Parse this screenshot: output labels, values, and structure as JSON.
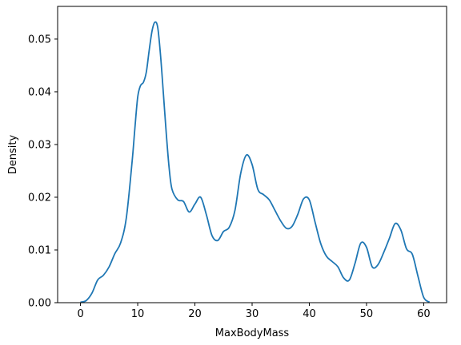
{
  "chart_data": {
    "type": "line",
    "title": "",
    "xlabel": "MaxBodyMass",
    "ylabel": "Density",
    "xlim": [
      -4,
      64
    ],
    "ylim": [
      0,
      0.0562
    ],
    "grid": false,
    "legend": "none",
    "xticks": [
      0,
      10,
      20,
      30,
      40,
      50,
      60
    ],
    "yticks": [
      0.0,
      0.01,
      0.02,
      0.03,
      0.04,
      0.05
    ],
    "ytick_format": 2,
    "series": [
      {
        "color": "#1f77b4",
        "x": [
          0,
          1,
          2,
          3,
          4,
          5,
          6,
          7,
          8,
          9,
          9.5,
          10,
          10.5,
          11,
          11.5,
          12,
          12.5,
          13,
          13.5,
          14,
          14.5,
          15,
          15.5,
          16,
          17,
          18,
          19,
          20,
          21,
          22,
          23,
          24,
          25,
          26,
          27,
          28,
          29,
          30,
          31,
          32,
          33,
          34,
          35,
          36,
          37,
          38,
          39,
          40,
          41,
          42,
          43,
          44,
          45,
          46,
          47,
          48,
          49,
          50,
          51,
          52,
          53,
          54,
          55,
          56,
          57,
          58,
          59,
          60,
          61
        ],
        "y": [
          0.0001,
          0.0004,
          0.0018,
          0.0043,
          0.0052,
          0.0068,
          0.0093,
          0.0113,
          0.016,
          0.0265,
          0.033,
          0.039,
          0.0412,
          0.0418,
          0.0437,
          0.0478,
          0.0515,
          0.0532,
          0.0522,
          0.0468,
          0.0395,
          0.032,
          0.0255,
          0.0215,
          0.0195,
          0.0192,
          0.0172,
          0.0187,
          0.02,
          0.0167,
          0.0127,
          0.0118,
          0.0135,
          0.0143,
          0.0175,
          0.0245,
          0.028,
          0.0262,
          0.0215,
          0.0205,
          0.0195,
          0.0175,
          0.0155,
          0.0141,
          0.0145,
          0.0168,
          0.0197,
          0.0195,
          0.0153,
          0.0112,
          0.0088,
          0.0078,
          0.0068,
          0.0047,
          0.0043,
          0.0075,
          0.0113,
          0.0105,
          0.0068,
          0.0072,
          0.0095,
          0.0122,
          0.015,
          0.0138,
          0.0102,
          0.0092,
          0.005,
          0.001,
          0.0001
        ]
      }
    ]
  }
}
